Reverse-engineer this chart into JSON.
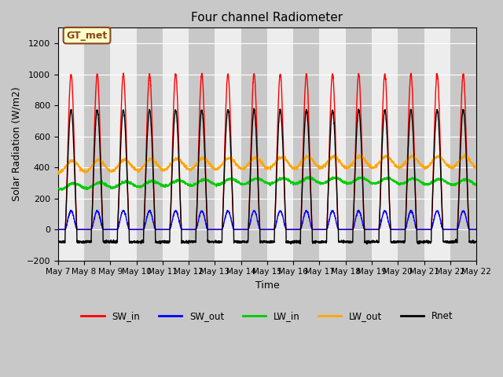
{
  "title": "Four channel Radiometer",
  "xlabel": "Time",
  "ylabel": "Solar Radiation (W/m2)",
  "ylim": [
    -200,
    1300
  ],
  "yticks": [
    -200,
    0,
    200,
    400,
    600,
    800,
    1000,
    1200
  ],
  "num_days": 16,
  "annotation_text": "GT_met",
  "annotation_color": "#8B4513",
  "annotation_bg": "#ffffcc",
  "legend_entries": [
    "SW_in",
    "SW_out",
    "LW_in",
    "LW_out",
    "Rnet"
  ],
  "legend_colors": [
    "#ff0000",
    "#0000ff",
    "#00cc00",
    "#ffa500",
    "#000000"
  ],
  "tick_labels": [
    "May 7",
    "May 8",
    "May 9",
    "May 10",
    "May 11",
    "May 12",
    "May 13",
    "May 14",
    "May 15",
    "May 16",
    "May 17",
    "May 18",
    "May 19",
    "May 20",
    "May 21",
    "May 22",
    "May 22"
  ]
}
